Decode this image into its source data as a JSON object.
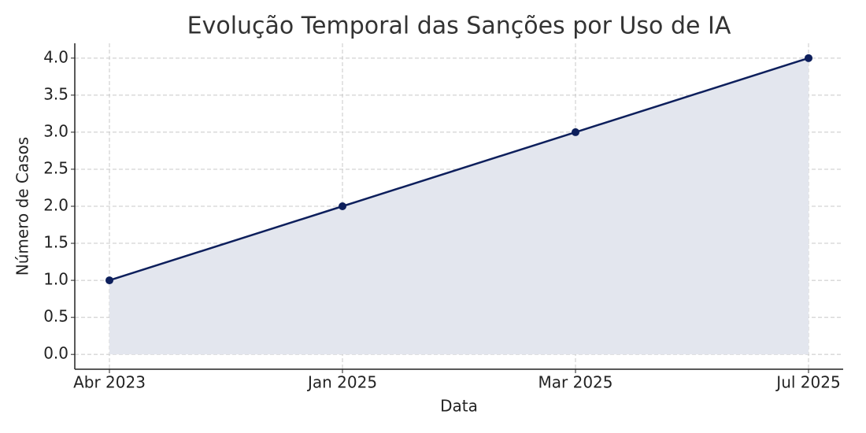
{
  "chart_data": {
    "type": "area",
    "title": "Evolução Temporal das Sanções por Uso de IA",
    "x_label": "Data",
    "y_label": "Número de Casos",
    "categories": [
      "Abr 2023",
      "Jan 2025",
      "Mar 2025",
      "Jul 2025"
    ],
    "values": [
      1,
      2,
      3,
      4
    ],
    "color": "#0d1f5c",
    "fill_color": "#e3e6ee",
    "ylim": [
      -0.2,
      4.2
    ],
    "yticks": [
      {
        "value": 0,
        "label": "0.0"
      },
      0.5,
      {
        "value": 1,
        "label": "1.0"
      },
      1.5,
      {
        "value": 2,
        "label": "2.0"
      },
      2.5,
      {
        "value": 3,
        "label": "3.0"
      },
      3.5,
      {
        "value": 4,
        "label": "4.0"
      }
    ],
    "grid": true
  }
}
